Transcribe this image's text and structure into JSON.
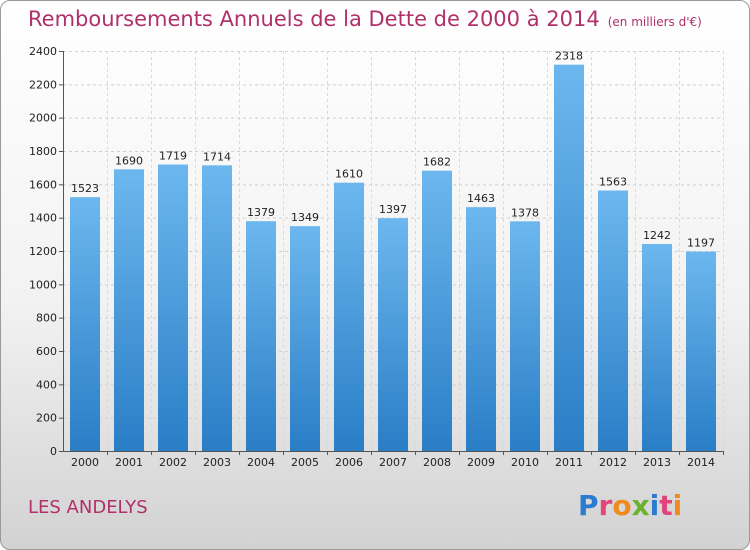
{
  "chart": {
    "title": "Remboursements Annuels de la Dette de 2000 à 2014",
    "unit": "(en milliers d'€)",
    "location": "LES ANDELYS",
    "logo": "Proxiti"
  },
  "colors": {
    "bar_top": "#6cb7ee",
    "bar_bottom": "#2a7ec6",
    "title": "#b0306a"
  },
  "chart_data": {
    "type": "bar",
    "title": "Remboursements Annuels de la Dette de 2000 à 2014",
    "categories": [
      "2000",
      "2001",
      "2002",
      "2003",
      "2004",
      "2005",
      "2006",
      "2007",
      "2008",
      "2009",
      "2010",
      "2011",
      "2012",
      "2013",
      "2014"
    ],
    "values": [
      1523,
      1690,
      1719,
      1714,
      1379,
      1349,
      1610,
      1397,
      1682,
      1463,
      1378,
      2318,
      1563,
      1242,
      1197
    ],
    "ylim": [
      0,
      2400
    ],
    "yticks": [
      0,
      200,
      400,
      600,
      800,
      1000,
      1200,
      1400,
      1600,
      1800,
      2000,
      2200,
      2400
    ],
    "grid": true,
    "xlabel": "",
    "ylabel": ""
  }
}
